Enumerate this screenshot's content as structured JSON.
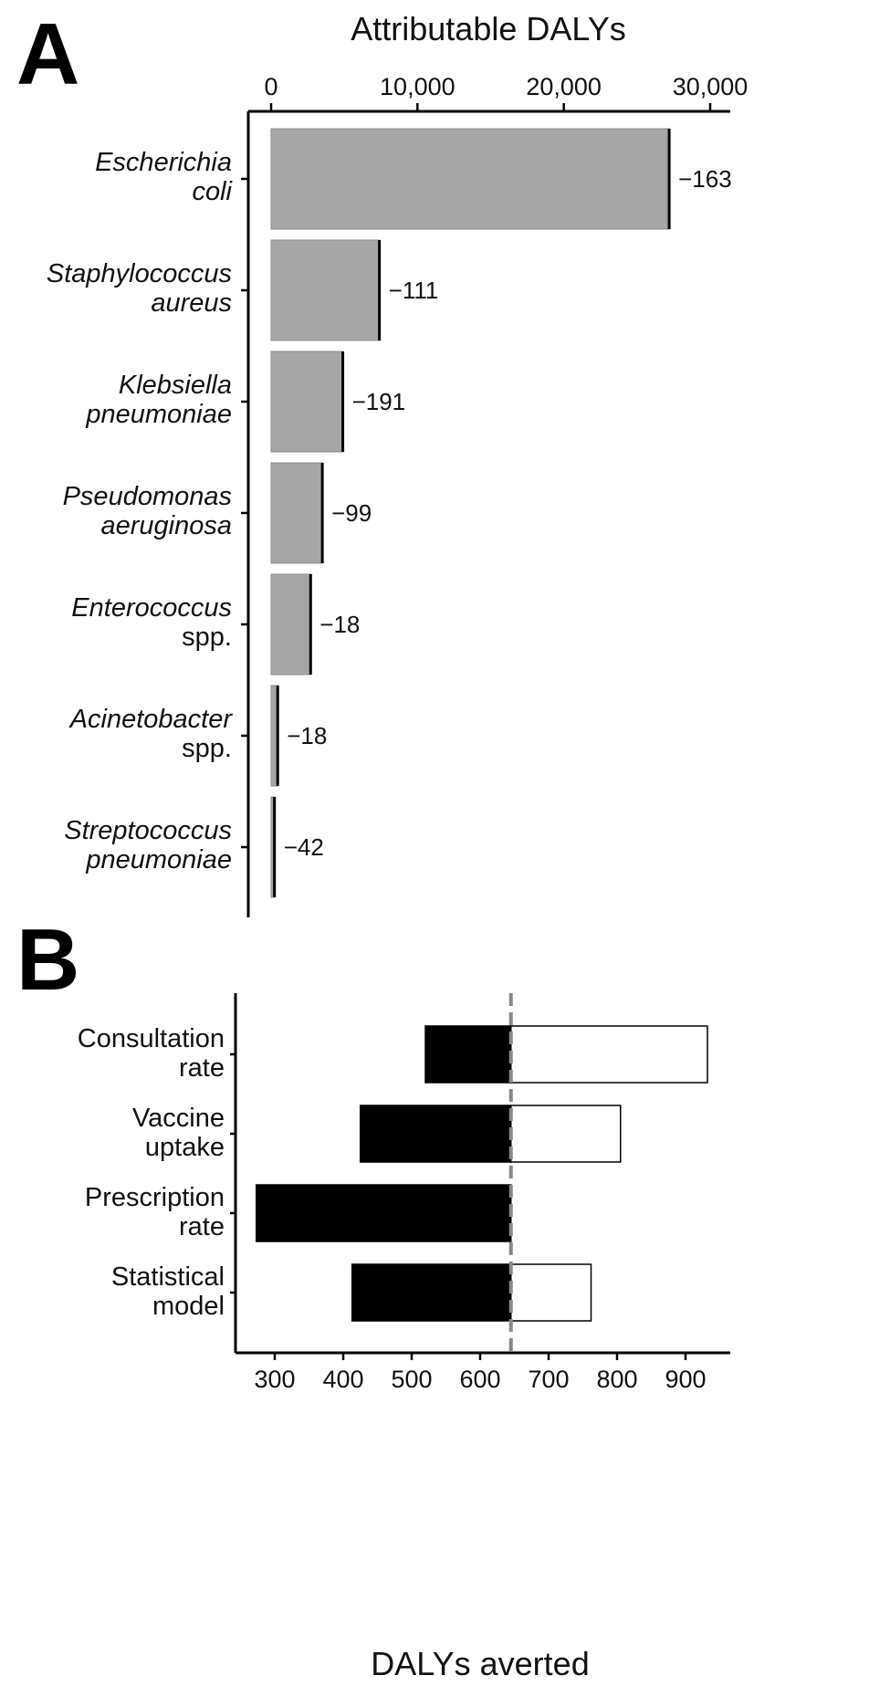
{
  "panel_a": {
    "letter": "A",
    "axis_title": "Attributable DALYs"
  },
  "panel_b": {
    "letter": "B",
    "axis_title": "DALYs averted"
  },
  "chart_data": [
    {
      "type": "bar",
      "orientation": "horizontal",
      "panel": "A",
      "xlabel": "Attributable DALYs",
      "x_axis_position": "top",
      "xlim": [
        0,
        31500
      ],
      "xticks": [
        0,
        10000,
        20000,
        30000
      ],
      "xtick_labels": [
        "0",
        "10,000",
        "20,000",
        "30,000"
      ],
      "grid": false,
      "categories": [
        {
          "name": [
            "Escherichia",
            "coli"
          ],
          "italic": [
            true,
            true
          ]
        },
        {
          "name": [
            "Staphylococcus",
            "aureus"
          ],
          "italic": [
            true,
            true
          ]
        },
        {
          "name": [
            "Klebsiella",
            "pneumoniae"
          ],
          "italic": [
            true,
            true
          ]
        },
        {
          "name": [
            "Pseudomonas",
            "aeruginosa"
          ],
          "italic": [
            true,
            true
          ]
        },
        {
          "name": [
            "Enterococcus",
            "spp."
          ],
          "italic": [
            true,
            false
          ]
        },
        {
          "name": [
            "Acinetobacter",
            "spp."
          ],
          "italic": [
            true,
            false
          ]
        },
        {
          "name": [
            "Streptococcus",
            "pneumoniae"
          ],
          "italic": [
            true,
            true
          ]
        }
      ],
      "values": [
        27200,
        7400,
        4900,
        3500,
        2700,
        450,
        230
      ],
      "averted_marker_values": [
        27200,
        7400,
        4900,
        3500,
        2700,
        450,
        230
      ],
      "labels": [
        "−163",
        "−111",
        "−191",
        "−99",
        "−18",
        "−18",
        "−42"
      ],
      "colors": {
        "bar": "#a6a6a6",
        "bar_edge": "#8c8c8c",
        "marker": "#000000"
      }
    },
    {
      "type": "bar",
      "orientation": "horizontal",
      "panel": "B",
      "subtype": "tornado",
      "xlabel": "DALYs averted",
      "x_axis_position": "bottom",
      "xlim": [
        240,
        960
      ],
      "xticks": [
        300,
        400,
        500,
        600,
        700,
        800,
        900
      ],
      "xtick_labels": [
        "300",
        "400",
        "500",
        "600",
        "700",
        "800",
        "900"
      ],
      "baseline": 645,
      "grid": false,
      "categories": [
        {
          "name": [
            "Consultation",
            "rate"
          ]
        },
        {
          "name": [
            "Vaccine",
            "uptake"
          ]
        },
        {
          "name": [
            "Prescription",
            "rate"
          ]
        },
        {
          "name": [
            "Statistical",
            "model"
          ]
        }
      ],
      "low_values": [
        520,
        425,
        273,
        413
      ],
      "high_values": [
        932,
        805,
        645,
        762
      ],
      "colors": {
        "low": "#000000",
        "high": "#ffffff",
        "baseline": "#888888"
      }
    }
  ]
}
